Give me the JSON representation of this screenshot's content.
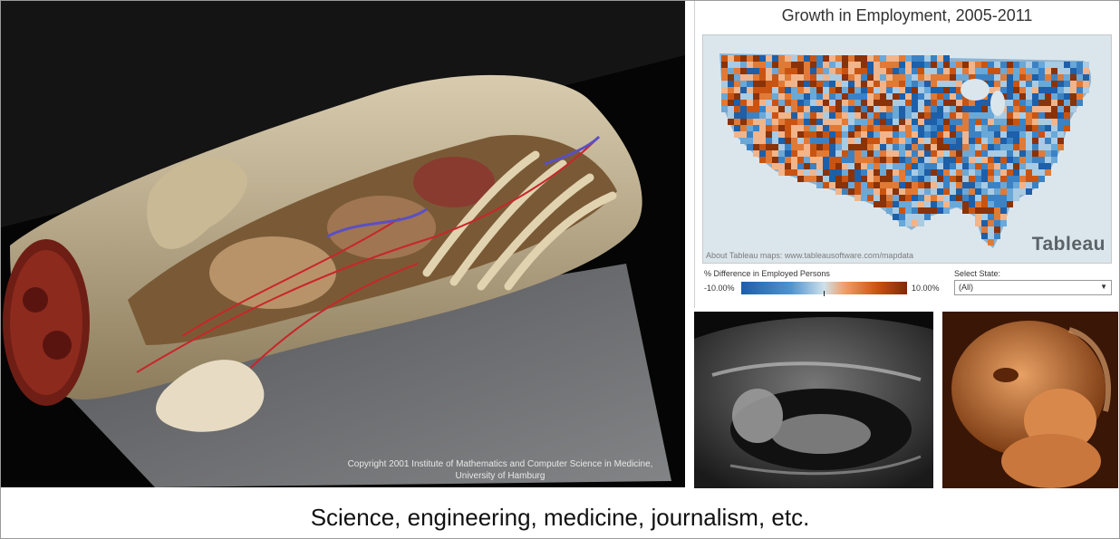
{
  "anatomy": {
    "copyright_line1": "Copyright 2001 Institute of Mathematics and Computer Science in Medicine,",
    "copyright_line2": "University of Hamburg"
  },
  "map": {
    "title": "Growth in Employment, 2005-2011",
    "source": "About Tableau maps: www.tableausoftware.com/mapdata",
    "logo_text": "Tableau",
    "legend_title": "% Difference in Employed Persons",
    "legend_min": "-10.00%",
    "legend_max": "10.00%",
    "select_label": "Select State:",
    "select_value": "(All)",
    "colors": {
      "negative": "#1d5fa8",
      "neutral": "#cfe0ea",
      "positive": "#c95412"
    }
  },
  "ultrasound": {
    "icon": "ultrasound-scan"
  },
  "render3d": {
    "icon": "3d-ultrasound-render"
  },
  "caption": "Science, engineering, medicine, journalism, etc."
}
